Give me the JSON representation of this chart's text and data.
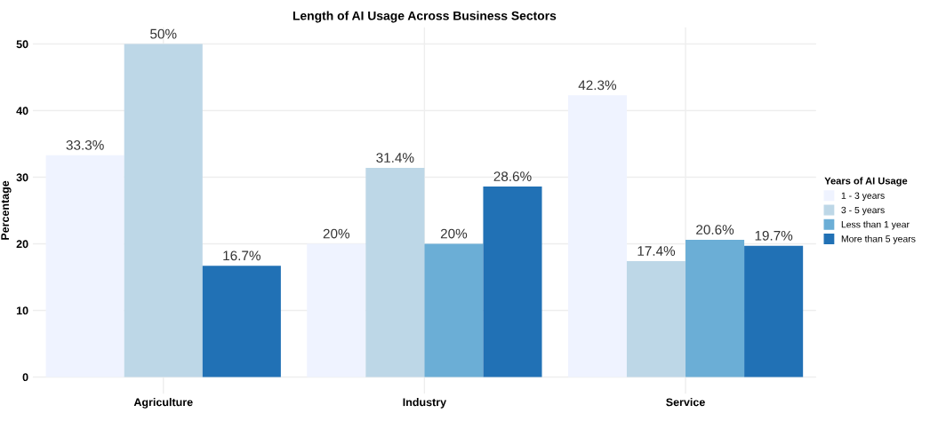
{
  "chart_data": {
    "type": "bar",
    "title": "Length of AI Usage Across Business Sectors",
    "ylabel": "Percentage",
    "legend_title": "Years of AI Usage",
    "categories": [
      "Agriculture",
      "Industry",
      "Service"
    ],
    "series": [
      {
        "name": "1 - 3 years",
        "color": "#eff3ff",
        "values": [
          33.3,
          20,
          42.3
        ],
        "value_labels": [
          "33.3%",
          "20%",
          "42.3%"
        ]
      },
      {
        "name": "3 - 5 years",
        "color": "#bdd7e7",
        "values": [
          50,
          31.4,
          17.4
        ],
        "value_labels": [
          "50%",
          "31.4%",
          "17.4%"
        ]
      },
      {
        "name": "Less than 1 year",
        "color": "#6baed6",
        "values": [
          null,
          20,
          20.6
        ],
        "value_labels": [
          null,
          "20%",
          "20.6%"
        ]
      },
      {
        "name": "More than 5 years",
        "color": "#2171b5",
        "values": [
          16.7,
          28.6,
          19.7
        ],
        "value_labels": [
          "16.7%",
          "28.6%",
          "19.7%"
        ]
      }
    ],
    "ylim": [
      -2.5,
      52.5
    ],
    "yticks": [
      0,
      10,
      20,
      30,
      40,
      50
    ],
    "grid": true,
    "legend": "right"
  }
}
